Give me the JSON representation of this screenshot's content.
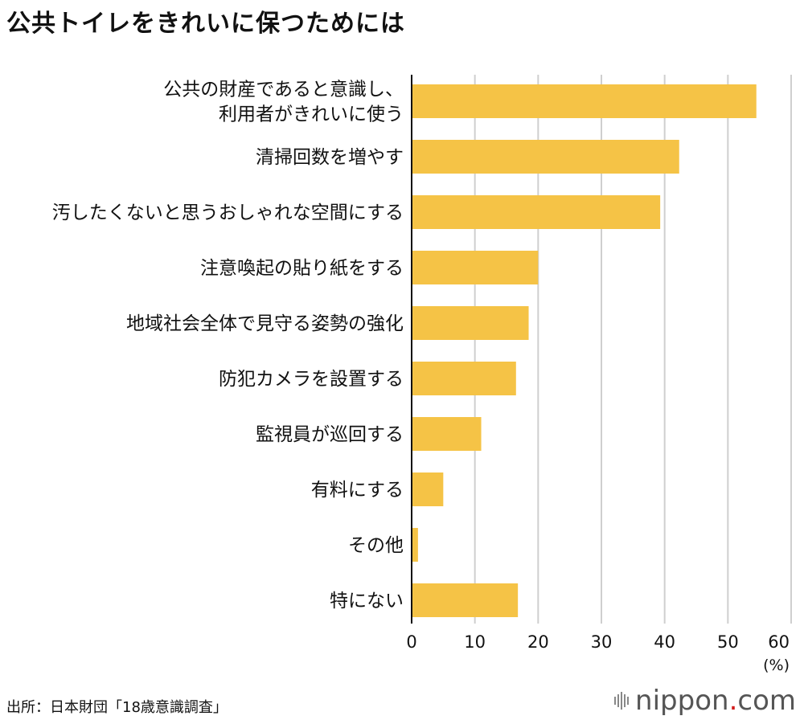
{
  "title": "公共トイレをきれいに保つためには",
  "source": "出所：日本財団「18歳意識調査」",
  "logo": {
    "name": "nippon",
    "dot": ".",
    "suffix": "com"
  },
  "colors": {
    "bar": "#F5C346",
    "grid": "#cfcfcf",
    "axis": "#111111"
  },
  "chart_data": {
    "type": "bar",
    "orientation": "horizontal",
    "categories": [
      [
        "公共の財産であると意識し、",
        "利用者がきれいに使う"
      ],
      [
        "清掃回数を増やす"
      ],
      [
        "汚したくないと思うおしゃれな空間にする"
      ],
      [
        "注意喚起の貼り紙をする"
      ],
      [
        "地域社会全体で見守る姿勢の強化"
      ],
      [
        "防犯カメラを設置する"
      ],
      [
        "監視員が巡回する"
      ],
      [
        "有料にする"
      ],
      [
        "その他"
      ],
      [
        "特にない"
      ]
    ],
    "values": [
      54.5,
      42.3,
      39.3,
      20.0,
      18.5,
      16.5,
      11.0,
      5.0,
      1.0,
      16.8
    ],
    "xlim": [
      0,
      60
    ],
    "xticks": [
      0,
      10,
      20,
      30,
      40,
      50,
      60
    ],
    "xunit": "(%)",
    "grid": true
  }
}
